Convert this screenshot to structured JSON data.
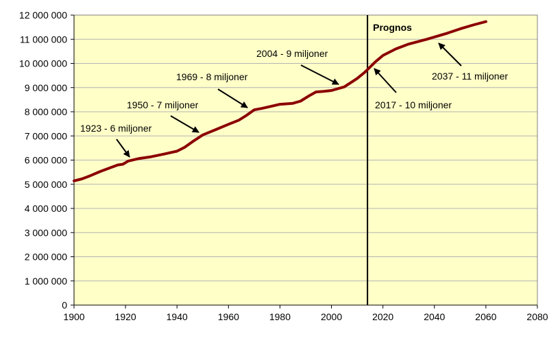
{
  "chart_data": {
    "type": "line",
    "title": "",
    "xlabel": "",
    "ylabel": "",
    "xlim": [
      1900,
      2080
    ],
    "ylim": [
      0,
      12000000
    ],
    "x_ticks": [
      "1900",
      "1920",
      "1940",
      "1960",
      "1980",
      "2000",
      "2020",
      "2040",
      "2060",
      "2080"
    ],
    "y_ticks": [
      "0",
      "1 000 000",
      "2 000 000",
      "3 000 000",
      "4 000 000",
      "5 000 000",
      "6 000 000",
      "7 000 000",
      "8 000 000",
      "9 000 000",
      "10 000 000",
      "11 000 000",
      "12 000 000"
    ],
    "grid": "horizontal",
    "colors": {
      "line": "#8b0000",
      "plot_bg": "#ffffc8",
      "grid": "#b4b4b4",
      "forecast_line": "#000000"
    },
    "series": [
      {
        "values": [
          [
            1900,
            5140000
          ],
          [
            1903,
            5220000
          ],
          [
            1906,
            5340000
          ],
          [
            1910,
            5520000
          ],
          [
            1914,
            5680000
          ],
          [
            1917,
            5800000
          ],
          [
            1919,
            5830000
          ],
          [
            1921,
            5960000
          ],
          [
            1925,
            6060000
          ],
          [
            1930,
            6140000
          ],
          [
            1935,
            6250000
          ],
          [
            1940,
            6370000
          ],
          [
            1943,
            6530000
          ],
          [
            1946,
            6760000
          ],
          [
            1950,
            7040000
          ],
          [
            1955,
            7260000
          ],
          [
            1960,
            7480000
          ],
          [
            1964,
            7650000
          ],
          [
            1967,
            7850000
          ],
          [
            1970,
            8080000
          ],
          [
            1973,
            8140000
          ],
          [
            1976,
            8210000
          ],
          [
            1980,
            8310000
          ],
          [
            1985,
            8350000
          ],
          [
            1988,
            8440000
          ],
          [
            1991,
            8640000
          ],
          [
            1994,
            8820000
          ],
          [
            1997,
            8845000
          ],
          [
            2000,
            8880000
          ],
          [
            2005,
            9030000
          ],
          [
            2010,
            9380000
          ],
          [
            2013,
            9640000
          ],
          [
            2017,
            10060000
          ],
          [
            2020,
            10330000
          ],
          [
            2025,
            10600000
          ],
          [
            2030,
            10800000
          ],
          [
            2037,
            11000000
          ],
          [
            2045,
            11250000
          ],
          [
            2050,
            11430000
          ],
          [
            2055,
            11590000
          ],
          [
            2060,
            11730000
          ]
        ]
      }
    ],
    "forecast_year": 2014,
    "forecast_label": "Prognos",
    "annotations": [
      {
        "text": "1923 - 6 miljoner",
        "year": 1923,
        "value": 6000000
      },
      {
        "text": "1950 - 7 miljoner",
        "year": 1950,
        "value": 7000000
      },
      {
        "text": "1969 - 8 miljoner",
        "year": 1969,
        "value": 8000000
      },
      {
        "text": "2004 - 9 miljoner",
        "year": 2004,
        "value": 9000000
      },
      {
        "text": "2017 - 10 miljoner",
        "year": 2017,
        "value": 10000000
      },
      {
        "text": "2037 - 11 miljoner",
        "year": 2037,
        "value": 11000000
      }
    ]
  }
}
